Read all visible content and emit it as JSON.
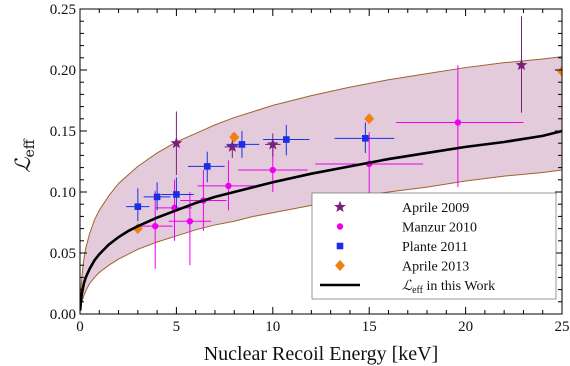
{
  "chart_data": {
    "type": "scatter",
    "xlabel": "Nuclear Recoil Energy [keV]",
    "ylabel": {
      "main": "ℒ",
      "sub": "eff"
    },
    "xlim": [
      0,
      25
    ],
    "ylim": [
      0,
      0.25
    ],
    "xticks": [
      "0",
      "5",
      "10",
      "15",
      "20",
      "25"
    ],
    "yticks": [
      "0.00",
      "0.05",
      "0.10",
      "0.15",
      "0.20",
      "0.25"
    ],
    "legend_position": "bottom-right",
    "colors": {
      "aprile2009": "#7a1f7a",
      "manzur2010": "#ee00ee",
      "plante2011": "#1a2ee8",
      "aprile2013": "#f08010",
      "band_fill": "#e3cbdc",
      "band_edge": "#a0622d",
      "fit": "#000000"
    },
    "fit_curve": {
      "x": [
        0.01,
        0.05,
        0.1,
        0.2,
        0.3,
        0.5,
        0.75,
        1,
        1.5,
        2,
        2.5,
        3,
        4,
        5,
        6,
        7,
        8,
        9,
        10,
        12,
        14,
        16,
        18,
        20,
        22,
        24,
        25
      ],
      "y": [
        0.003,
        0.011,
        0.017,
        0.025,
        0.03,
        0.037,
        0.044,
        0.049,
        0.057,
        0.063,
        0.068,
        0.072,
        0.079,
        0.085,
        0.091,
        0.096,
        0.1,
        0.104,
        0.108,
        0.115,
        0.121,
        0.127,
        0.132,
        0.137,
        0.141,
        0.146,
        0.15
      ]
    },
    "band_upper": {
      "x": [
        0.01,
        0.05,
        0.1,
        0.2,
        0.3,
        0.5,
        0.75,
        1,
        1.5,
        2,
        2.5,
        3,
        4,
        5,
        6,
        7,
        8,
        9,
        10,
        12,
        14,
        16,
        18,
        20,
        22,
        24,
        25
      ],
      "y": [
        0.004,
        0.02,
        0.031,
        0.045,
        0.054,
        0.066,
        0.077,
        0.085,
        0.097,
        0.107,
        0.114,
        0.121,
        0.132,
        0.141,
        0.148,
        0.155,
        0.161,
        0.166,
        0.171,
        0.179,
        0.186,
        0.192,
        0.197,
        0.202,
        0.206,
        0.209,
        0.211
      ]
    },
    "band_lower": {
      "x": [
        0.01,
        0.05,
        0.1,
        0.2,
        0.3,
        0.5,
        0.75,
        1,
        1.5,
        2,
        2.5,
        3,
        4,
        5,
        6,
        7,
        8,
        9,
        10,
        12,
        14,
        16,
        18,
        20,
        22,
        24,
        25
      ],
      "y": [
        0.002,
        0.006,
        0.01,
        0.015,
        0.019,
        0.025,
        0.03,
        0.034,
        0.04,
        0.045,
        0.049,
        0.053,
        0.059,
        0.064,
        0.069,
        0.073,
        0.076,
        0.08,
        0.083,
        0.089,
        0.095,
        0.1,
        0.104,
        0.109,
        0.113,
        0.116,
        0.118
      ]
    },
    "series": [
      {
        "name": "Aprile 2009",
        "key": "aprile2009",
        "marker": "star",
        "points": [
          {
            "x": 5.0,
            "y": 0.14,
            "ylo": 0.114,
            "yhi": 0.166,
            "xlo": null,
            "xhi": null
          },
          {
            "x": 7.9,
            "y": 0.137,
            "ylo": 0.128,
            "yhi": 0.148,
            "xlo": 7.5,
            "xhi": 8.3
          },
          {
            "x": 10.0,
            "y": 0.139,
            "ylo": 0.129,
            "yhi": 0.148,
            "xlo": 9.6,
            "xhi": 10.4
          },
          {
            "x": 22.9,
            "y": 0.204,
            "ylo": 0.165,
            "yhi": 0.244,
            "xlo": null,
            "xhi": null
          }
        ]
      },
      {
        "name": "Manzur 2010",
        "key": "manzur2010",
        "marker": "circle",
        "points": [
          {
            "x": 3.9,
            "y": 0.072,
            "ylo": 0.037,
            "yhi": 0.101,
            "xlo": 3.0,
            "xhi": 4.8
          },
          {
            "x": 4.9,
            "y": 0.087,
            "ylo": 0.06,
            "yhi": 0.11,
            "xlo": 3.9,
            "xhi": 5.8
          },
          {
            "x": 5.7,
            "y": 0.076,
            "ylo": 0.04,
            "yhi": 0.1,
            "xlo": 4.6,
            "xhi": 6.8
          },
          {
            "x": 6.4,
            "y": 0.093,
            "ylo": 0.068,
            "yhi": 0.118,
            "xlo": 5.2,
            "xhi": 7.6
          },
          {
            "x": 7.7,
            "y": 0.105,
            "ylo": 0.085,
            "yhi": 0.126,
            "xlo": 6.1,
            "xhi": 9.3
          },
          {
            "x": 10.0,
            "y": 0.118,
            "ylo": 0.1,
            "yhi": 0.137,
            "xlo": 8.2,
            "xhi": 11.8
          },
          {
            "x": 15.0,
            "y": 0.123,
            "ylo": 0.096,
            "yhi": 0.149,
            "xlo": 12.2,
            "xhi": 17.8
          },
          {
            "x": 19.6,
            "y": 0.157,
            "ylo": 0.104,
            "yhi": 0.204,
            "xlo": 16.4,
            "xhi": 23.0
          }
        ]
      },
      {
        "name": "Plante 2011",
        "key": "plante2011",
        "marker": "square",
        "points": [
          {
            "x": 3.0,
            "y": 0.088,
            "ylo": 0.076,
            "yhi": 0.103,
            "xlo": 2.4,
            "xhi": 3.6
          },
          {
            "x": 4.0,
            "y": 0.096,
            "ylo": 0.085,
            "yhi": 0.108,
            "xlo": 3.3,
            "xhi": 4.7
          },
          {
            "x": 5.0,
            "y": 0.098,
            "ylo": 0.087,
            "yhi": 0.112,
            "xlo": 4.2,
            "xhi": 5.9
          },
          {
            "x": 6.6,
            "y": 0.121,
            "ylo": 0.108,
            "yhi": 0.133,
            "xlo": 5.6,
            "xhi": 7.5
          },
          {
            "x": 8.4,
            "y": 0.139,
            "ylo": 0.128,
            "yhi": 0.15,
            "xlo": 7.6,
            "xhi": 9.3
          },
          {
            "x": 10.7,
            "y": 0.143,
            "ylo": 0.13,
            "yhi": 0.155,
            "xlo": 9.5,
            "xhi": 11.9
          },
          {
            "x": 14.8,
            "y": 0.144,
            "ylo": 0.132,
            "yhi": 0.157,
            "xlo": 13.2,
            "xhi": 16.3
          }
        ]
      },
      {
        "name": "Aprile 2013",
        "key": "aprile2013",
        "marker": "diamond",
        "points": [
          {
            "x": 3.0,
            "y": 0.07
          },
          {
            "x": 8.0,
            "y": 0.145
          },
          {
            "x": 15.0,
            "y": 0.16
          },
          {
            "x": 25.0,
            "y": 0.199
          }
        ]
      }
    ],
    "legend": [
      {
        "label": "Aprile 2009",
        "key": "aprile2009",
        "marker": "star"
      },
      {
        "label": "Manzur 2010",
        "key": "manzur2010",
        "marker": "circle"
      },
      {
        "label": "Plante 2011",
        "key": "plante2011",
        "marker": "square"
      },
      {
        "label": "Aprile 2013",
        "key": "aprile2013",
        "marker": "diamond"
      },
      {
        "label_main": "ℒ",
        "label_sub": "eff",
        "label_rest": " in this Work",
        "key": "fit",
        "marker": "line"
      }
    ]
  }
}
